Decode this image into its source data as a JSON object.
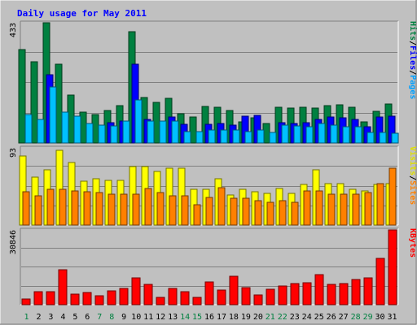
{
  "chart_data": {
    "type": "bar",
    "title": "Daily usage for May 2011",
    "days": [
      "1",
      "2",
      "3",
      "4",
      "5",
      "6",
      "7",
      "8",
      "9",
      "10",
      "11",
      "12",
      "13",
      "14",
      "15",
      "16",
      "17",
      "18",
      "19",
      "20",
      "21",
      "22",
      "23",
      "24",
      "25",
      "26",
      "27",
      "28",
      "29",
      "30",
      "31"
    ],
    "weekend_days": [
      "1",
      "7",
      "8",
      "14",
      "15",
      "21",
      "22",
      "28",
      "29"
    ],
    "panels": [
      {
        "id": "top",
        "ymax_label": "433",
        "ymax": 433,
        "right_labels": [
          {
            "text": "Hits",
            "color": "#008040"
          },
          {
            "text": "/",
            "color": "#000000"
          },
          {
            "text": "Files",
            "color": "#0000ff"
          },
          {
            "text": "/",
            "color": "#000000"
          },
          {
            "text": "Pages",
            "color": "#00a0ff"
          }
        ],
        "series": [
          {
            "name": "Hits",
            "color": "#008040",
            "values": [
              337,
              292,
              433,
              284,
              174,
              110,
              103,
              117,
              135,
              400,
              164,
              147,
              161,
              105,
              93,
              133,
              130,
              117,
              75,
              92,
              70,
              128,
              125,
              128,
              127,
              136,
              138,
              130,
              75,
              114,
              140
            ]
          },
          {
            "name": "Files",
            "color": "#0000ff",
            "values": [
              0,
              0,
              245,
              0,
              0,
              0,
              0,
              74,
              80,
              285,
              85,
              0,
              93,
              68,
              0,
              68,
              70,
              65,
              98,
              100,
              0,
              72,
              70,
              73,
              84,
              93,
              90,
              84,
              58,
              95,
              98
            ]
          },
          {
            "name": "Pages",
            "color": "#00c0ff",
            "values": [
              102,
              85,
              203,
              112,
              98,
              70,
              65,
              62,
              80,
              155,
              80,
              78,
              80,
              40,
              40,
              48,
              48,
              48,
              42,
              48,
              38,
              63,
              60,
              58,
              70,
              64,
              58,
              58,
              38,
              38,
              36
            ]
          }
        ]
      },
      {
        "id": "middle",
        "ymax_label": "93",
        "ymax": 93,
        "right_labels": [
          {
            "text": "Visits",
            "color": "#e0e000"
          },
          {
            "text": "/",
            "color": "#000000"
          },
          {
            "text": "Sites",
            "color": "#ff8000"
          }
        ],
        "series": [
          {
            "name": "Visits",
            "color": "#ffff00",
            "values": [
              83,
              58,
              67,
              90,
              75,
              53,
              56,
              54,
              54,
              70,
              70,
              65,
              69,
              69,
              43,
              43,
              56,
              36,
              43,
              40,
              38,
              44,
              38,
              49,
              67,
              50,
              50,
              43,
              41,
              49,
              50
            ]
          },
          {
            "name": "Sites",
            "color": "#ff8000",
            "values": [
              40,
              35,
              43,
              43,
              41,
              40,
              39,
              37,
              37,
              37,
              44,
              39,
              35,
              35,
              24,
              33,
              45,
              32,
              32,
              29,
              27,
              29,
              27,
              41,
              41,
              37,
              37,
              37,
              39,
              50,
              69
            ]
          }
        ]
      },
      {
        "id": "bottom",
        "ymax_label": "30846",
        "ymax": 30846,
        "right_labels": [
          {
            "text": "KBytes",
            "color": "#ff0000"
          }
        ],
        "series": [
          {
            "name": "KBytes",
            "color": "#ff0000",
            "values": [
              2400,
              5300,
              5200,
              14500,
              4300,
              5100,
              3600,
              5600,
              6700,
              11000,
              8400,
              3000,
              6700,
              5200,
              3100,
              9400,
              5900,
              11800,
              7000,
              4000,
              6300,
              7800,
              8800,
              8900,
              12300,
              8400,
              8600,
              10400,
              10900,
              19100,
              30846
            ]
          }
        ]
      }
    ]
  }
}
